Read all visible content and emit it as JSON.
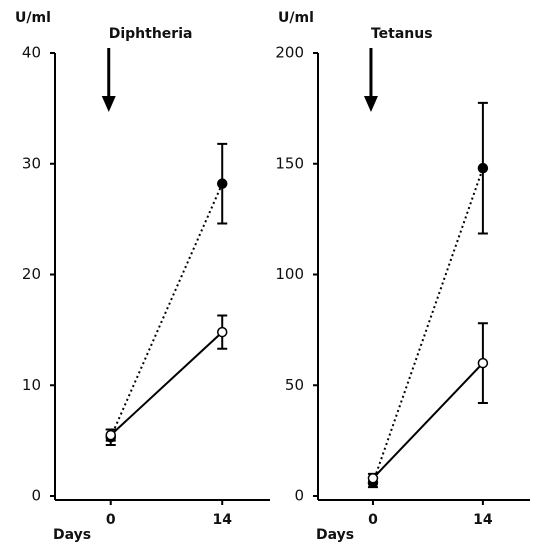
{
  "chart_data": [
    {
      "type": "line",
      "title": "Diphtheria",
      "ylabel": "U/ml",
      "xlabel": "Days",
      "x": [
        0,
        14
      ],
      "xlim": [
        -7,
        20
      ],
      "xticks": [
        0,
        14
      ],
      "ylim": [
        0,
        40
      ],
      "yticks": [
        0,
        10,
        20,
        30,
        40
      ],
      "series": [
        {
          "marker": "filled",
          "line_style": "dotted",
          "color": "#000000",
          "values": [
            5.3,
            28.2
          ],
          "errors": [
            0.7,
            3.6
          ]
        },
        {
          "marker": "open",
          "line_style": "solid",
          "color": "#000000",
          "values": [
            5.5,
            14.8
          ],
          "errors": [
            0.5,
            1.5
          ]
        }
      ]
    },
    {
      "type": "line",
      "title": "Tetanus",
      "ylabel": "U/ml",
      "xlabel": "Days",
      "x": [
        0,
        14
      ],
      "xlim": [
        -7,
        20
      ],
      "xticks": [
        0,
        14
      ],
      "ylim": [
        0,
        200
      ],
      "yticks": [
        0,
        50,
        100,
        150,
        200
      ],
      "series": [
        {
          "marker": "filled",
          "line_style": "dotted",
          "color": "#000000",
          "values": [
            6,
            148
          ],
          "errors": [
            2,
            29.5
          ]
        },
        {
          "marker": "open",
          "line_style": "solid",
          "color": "#000000",
          "values": [
            8,
            60
          ],
          "errors": [
            2,
            18
          ]
        }
      ]
    }
  ]
}
